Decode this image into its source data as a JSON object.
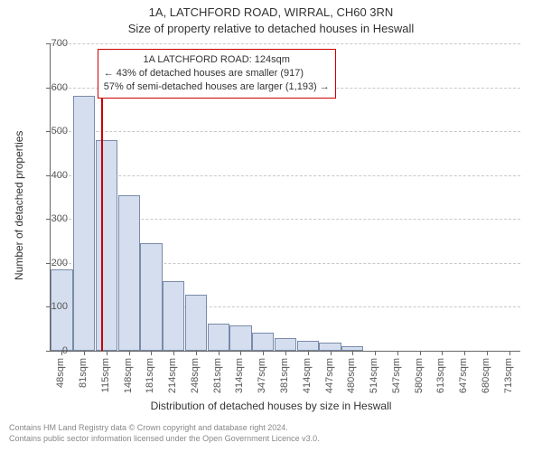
{
  "title_line1": "1A, LATCHFORD ROAD, WIRRAL, CH60 3RN",
  "title_line2": "Size of property relative to detached houses in Heswall",
  "ylabel": "Number of detached properties",
  "xlabel": "Distribution of detached houses by size in Heswall",
  "footer_line1": "Contains HM Land Registry data © Crown copyright and database right 2024.",
  "footer_line2": "Contains public sector information licensed under the Open Government Licence v3.0.",
  "chart": {
    "type": "bar",
    "ymin": 0,
    "ymax": 700,
    "ytick_step": 100,
    "categories": [
      "48sqm",
      "81sqm",
      "115sqm",
      "148sqm",
      "181sqm",
      "214sqm",
      "248sqm",
      "281sqm",
      "314sqm",
      "347sqm",
      "381sqm",
      "414sqm",
      "447sqm",
      "480sqm",
      "514sqm",
      "547sqm",
      "580sqm",
      "613sqm",
      "647sqm",
      "680sqm",
      "713sqm"
    ],
    "values": [
      185,
      580,
      480,
      355,
      245,
      158,
      128,
      62,
      58,
      42,
      28,
      22,
      18,
      10,
      0,
      0,
      0,
      0,
      0,
      0,
      0
    ],
    "bar_fill": "#d4deef",
    "bar_border": "#7a8aa8",
    "grid_color": "#c8c8c8",
    "axis_color": "#666666",
    "tick_fontsize": 11,
    "label_fontsize": 12,
    "title_fontsize": 13,
    "marker": {
      "color": "#cc0000",
      "category_index_after": 2,
      "lines": [
        "1A LATCHFORD ROAD: 124sqm",
        "← 43% of detached houses are smaller (917)",
        "57% of semi-detached houses are larger (1,193) →"
      ]
    }
  }
}
